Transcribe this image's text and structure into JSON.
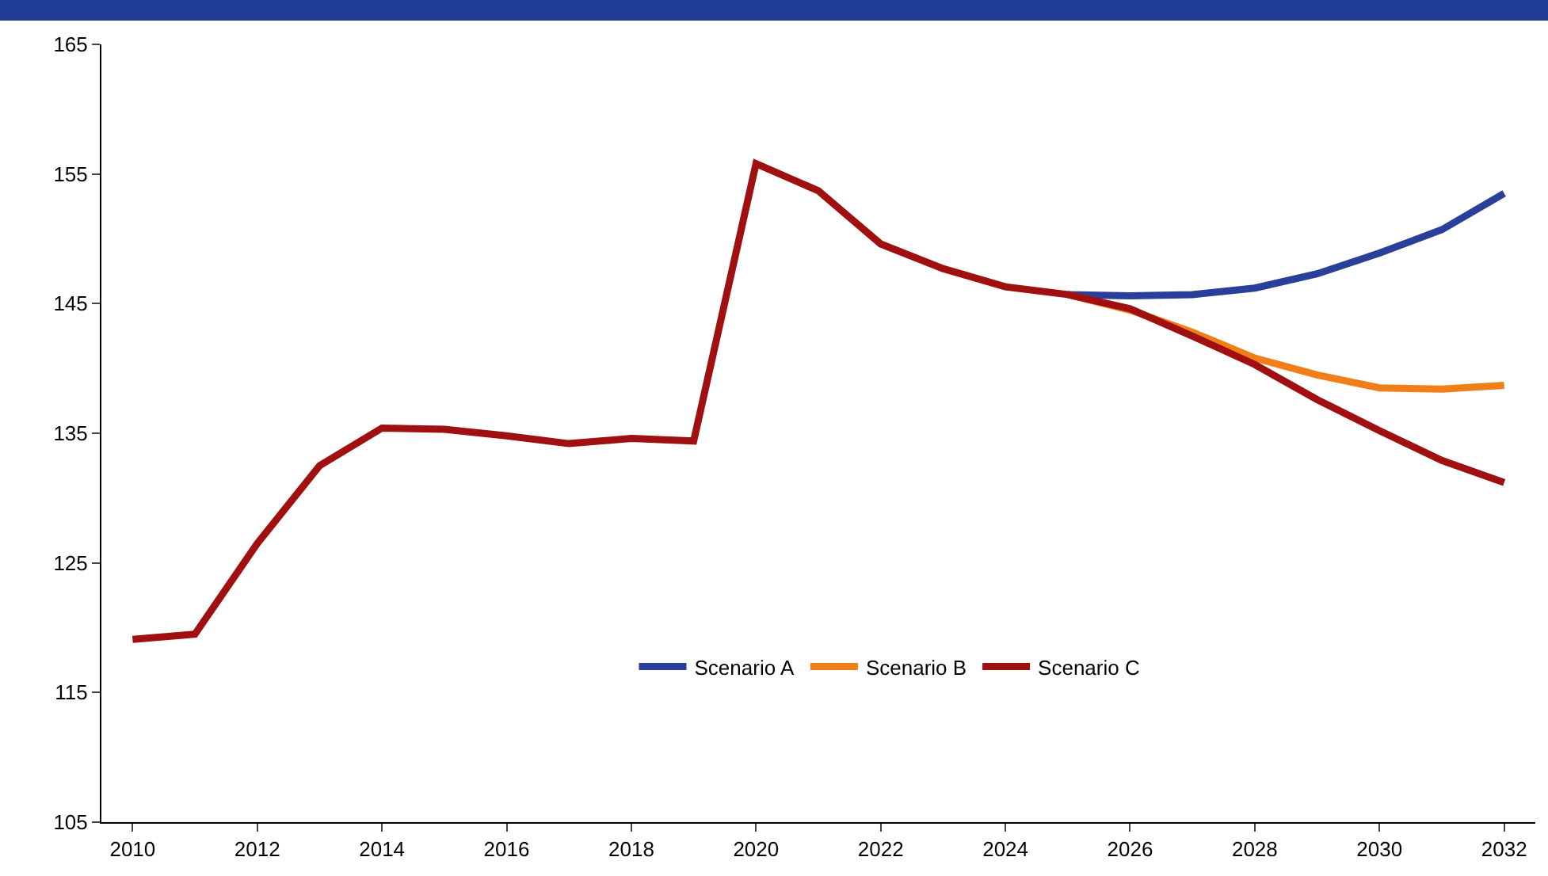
{
  "chart_data": {
    "type": "line",
    "x": [
      2010,
      2011,
      2012,
      2013,
      2014,
      2015,
      2016,
      2017,
      2018,
      2019,
      2020,
      2021,
      2022,
      2023,
      2024,
      2025,
      2026,
      2027,
      2028,
      2029,
      2030,
      2031,
      2032
    ],
    "series": [
      {
        "name": "Scenario A",
        "color": "#2a3f9a",
        "values": [
          null,
          null,
          null,
          null,
          null,
          null,
          null,
          null,
          null,
          null,
          null,
          null,
          null,
          null,
          null,
          145.7,
          145.6,
          145.7,
          146.2,
          147.3,
          148.9,
          150.7,
          153.5
        ]
      },
      {
        "name": "Scenario B",
        "color": "#f07f1a",
        "values": [
          null,
          null,
          null,
          null,
          null,
          null,
          null,
          null,
          null,
          null,
          null,
          null,
          null,
          null,
          null,
          145.7,
          144.5,
          142.8,
          140.8,
          139.5,
          138.5,
          138.4,
          138.7
        ]
      },
      {
        "name": "Scenario C",
        "color": "#a01010",
        "values": [
          119.1,
          119.5,
          126.5,
          132.5,
          135.4,
          135.3,
          134.8,
          134.2,
          134.6,
          134.4,
          155.8,
          153.7,
          149.6,
          147.7,
          146.3,
          145.7,
          144.6,
          142.5,
          140.3,
          137.6,
          135.2,
          132.9,
          131.2
        ]
      }
    ],
    "xlim": [
      2009.5,
      2032.5
    ],
    "xticks": [
      2010,
      2012,
      2014,
      2016,
      2018,
      2020,
      2022,
      2024,
      2026,
      2028,
      2030,
      2032
    ],
    "ylim": [
      105,
      165
    ],
    "yticks": [
      105,
      115,
      125,
      135,
      145,
      155,
      165
    ],
    "grid": false,
    "legend": "bottom",
    "marker": "none",
    "line_style": "solid"
  }
}
